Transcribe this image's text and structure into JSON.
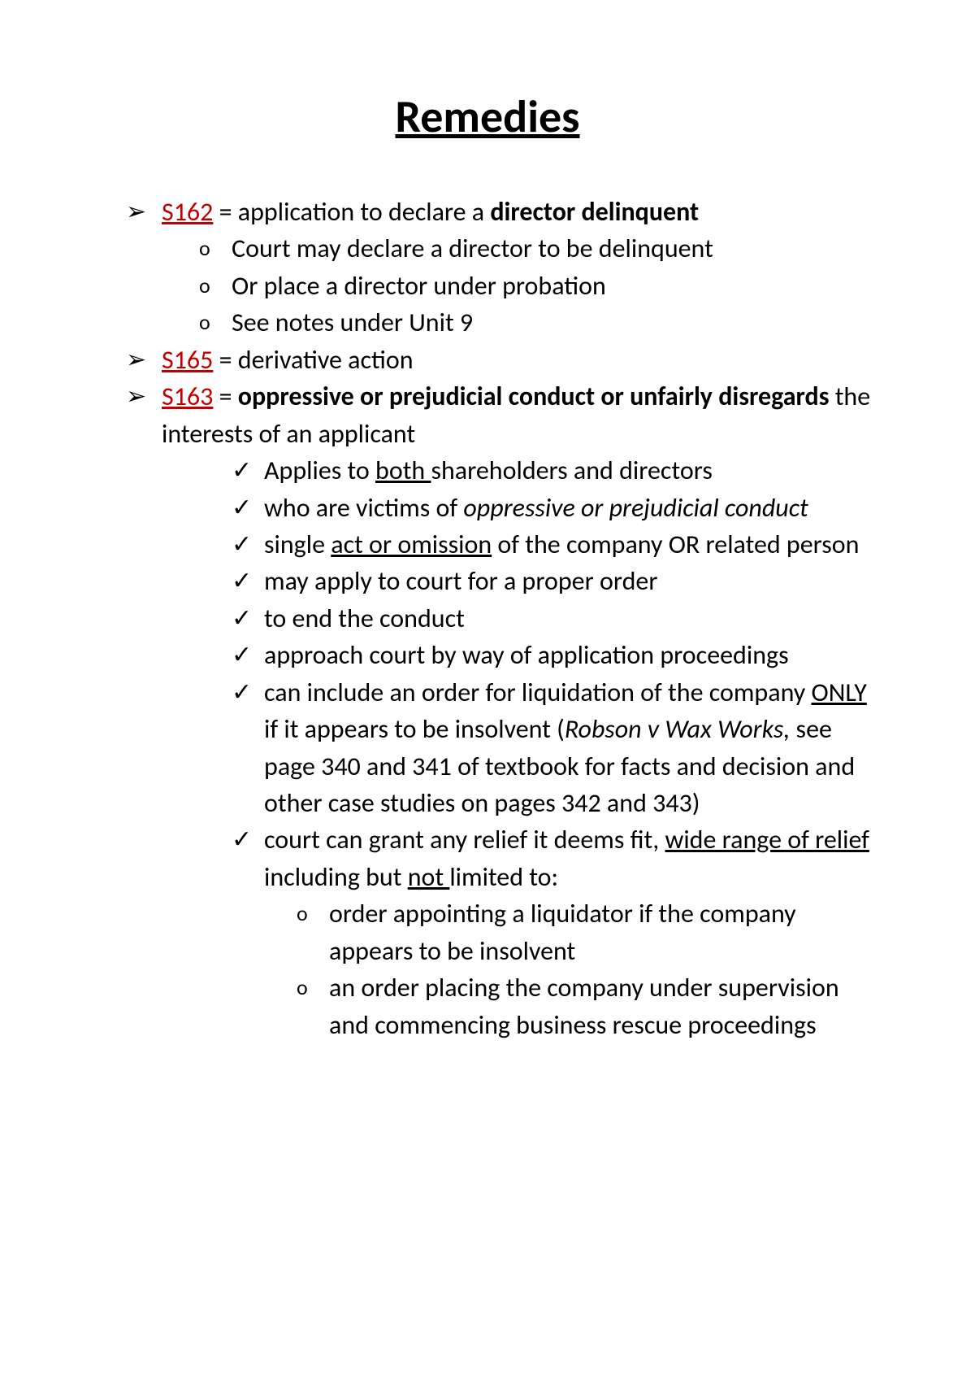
{
  "title": "Remedies",
  "s162": {
    "code": "S162",
    "eq": " = application to declare a ",
    "bold": "director delinquent",
    "sub": [
      "Court may declare a director to be delinquent",
      "Or place a director under probation",
      "See notes under Unit 9"
    ]
  },
  "s165": {
    "code": "S165",
    "rest": " = derivative action"
  },
  "s163": {
    "code": "S163",
    "eq": " = ",
    "bold": "oppressive or prejudicial conduct or unfairly disregards",
    "rest": " the interests of an applicant",
    "checks": {
      "c1a": "Applies to ",
      "c1u": "both ",
      "c1b": "shareholders and directors",
      "c2a": "who are victims of ",
      "c2i": "oppressive or prejudicial conduct",
      "c3a": "single ",
      "c3u": "act or omission",
      "c3b": " of the company OR related person",
      "c4": "may apply to court for a proper order",
      "c5": "to end the conduct",
      "c6": "approach court by way of application proceedings",
      "c7a": "can include an order for liquidation of the company ",
      "c7u": "ONLY",
      "c7b": " if it appears to be insolvent (",
      "c7i": "Robson v Wax Works,",
      "c7c": " see page 340 and 341 of textbook for facts and decision and other case studies on pages 342 and 343)",
      "c8a": "court can grant any relief it deems fit, ",
      "c8u": "wide range of relief",
      "c8b": " including but ",
      "c8u2": "not ",
      "c8c": "limited to:"
    },
    "relief": {
      "r1": "order appointing a liquidator if the company appears to be insolvent",
      "r2": "an order placing the company under supervision and commencing business rescue proceedings"
    }
  },
  "glyphs": {
    "arrow": "➢",
    "circle": "o",
    "check": "✓"
  }
}
